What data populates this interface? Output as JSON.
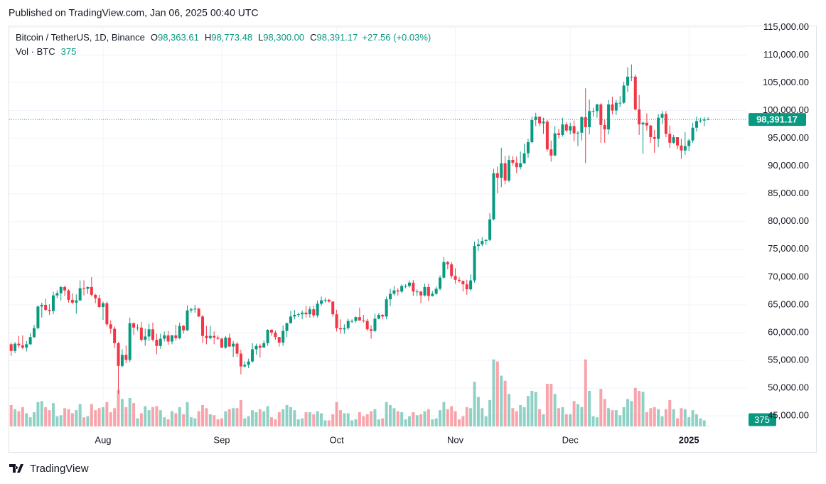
{
  "header": "Published on TradingView.com, Jan 06, 2025 00:40 UTC",
  "footer": "TradingView",
  "chart_data": {
    "type": "candlestick",
    "legend": {
      "symbol": "Bitcoin / TetherUS, 1D, Binance",
      "items": [
        {
          "key": "O",
          "text": "98,363.61"
        },
        {
          "key": "H",
          "text": "98,773.48"
        },
        {
          "key": "L",
          "text": "98,300.00"
        },
        {
          "key": "C",
          "text": "98,391.17"
        }
      ],
      "change": "+27.56 (+0.03%)",
      "volume_title": "Vol · BTC",
      "volume_text": "375"
    },
    "last_price_label": "98,391.17",
    "last_volume_label": "375",
    "up_color": "#089981",
    "down_color": "#f23645",
    "volume_up_color": "rgba(8,153,129,0.45)",
    "volume_down_color": "rgba(242,54,69,0.45)",
    "grid": true,
    "xlim": [
      -0.5,
      192
    ],
    "xticks": [
      {
        "value": 24,
        "label": "Aug"
      },
      {
        "value": 55,
        "label": "Sep"
      },
      {
        "value": 85,
        "label": "Oct"
      },
      {
        "value": 116,
        "label": "Nov"
      },
      {
        "value": 146,
        "label": "Dec"
      },
      {
        "value": 177,
        "label": "2025"
      }
    ],
    "ylim": [
      43100,
      115300
    ],
    "yticks": [
      {
        "value": 45000,
        "label": "45,000.00"
      },
      {
        "value": 50000,
        "label": "50,000.00"
      },
      {
        "value": 55000,
        "label": "55,000.00"
      },
      {
        "value": 60000,
        "label": "60,000.00"
      },
      {
        "value": 65000,
        "label": "65,000.00"
      },
      {
        "value": 70000,
        "label": "70,000.00"
      },
      {
        "value": 75000,
        "label": "75,000.00"
      },
      {
        "value": 80000,
        "label": "80,000.00"
      },
      {
        "value": 85000,
        "label": "85,000.00"
      },
      {
        "value": 90000,
        "label": "90,000.00"
      },
      {
        "value": 95000,
        "label": "95,000.00"
      },
      {
        "value": 100000,
        "label": "100,000.00"
      },
      {
        "value": 105000,
        "label": "105,000.00"
      },
      {
        "value": 110000,
        "label": "110,000.00"
      },
      {
        "value": 115000,
        "label": "115,000.00"
      }
    ],
    "vlim": [
      0,
      140000
    ],
    "ohlc": [
      [
        57900,
        58200,
        55800,
        56700
      ],
      [
        56700,
        58300,
        56300,
        58000
      ],
      [
        58000,
        59400,
        57200,
        57700
      ],
      [
        57700,
        59500,
        57000,
        57300
      ],
      [
        57300,
        58500,
        56600,
        57900
      ],
      [
        57900,
        59900,
        57800,
        59200
      ],
      [
        59200,
        61400,
        59000,
        60800
      ],
      [
        60800,
        64900,
        60600,
        64700
      ],
      [
        64700,
        65400,
        62700,
        65000
      ],
      [
        65000,
        66100,
        63900,
        64100
      ],
      [
        64100,
        65100,
        63200,
        63900
      ],
      [
        63900,
        67400,
        63300,
        66700
      ],
      [
        66700,
        67600,
        66200,
        67100
      ],
      [
        67100,
        68400,
        65800,
        68200
      ],
      [
        68200,
        68500,
        66600,
        67600
      ],
      [
        67600,
        67800,
        65400,
        65900
      ],
      [
        65900,
        67100,
        65100,
        65400
      ],
      [
        65400,
        66900,
        63400,
        65800
      ],
      [
        65800,
        69400,
        65700,
        68000
      ],
      [
        68000,
        69400,
        66700,
        67900
      ],
      [
        67900,
        68300,
        67000,
        68200
      ],
      [
        68200,
        70000,
        66500,
        66800
      ],
      [
        66800,
        67000,
        65300,
        66200
      ],
      [
        66200,
        66800,
        64500,
        64600
      ],
      [
        64600,
        65600,
        62300,
        65300
      ],
      [
        65300,
        65600,
        61100,
        61500
      ],
      [
        61500,
        62200,
        59800,
        60700
      ],
      [
        60700,
        61100,
        57200,
        58100
      ],
      [
        58100,
        58300,
        49000,
        54000
      ],
      [
        54000,
        57000,
        53700,
        56000
      ],
      [
        56000,
        57700,
        54500,
        55100
      ],
      [
        55100,
        62700,
        54700,
        61700
      ],
      [
        61700,
        61800,
        59600,
        60900
      ],
      [
        60900,
        61500,
        60300,
        60900
      ],
      [
        60900,
        61900,
        58400,
        58700
      ],
      [
        58700,
        60700,
        57600,
        59300
      ],
      [
        59300,
        61600,
        58500,
        60600
      ],
      [
        60600,
        61800,
        58400,
        58700
      ],
      [
        58700,
        59800,
        56100,
        57600
      ],
      [
        57600,
        59800,
        57100,
        58900
      ],
      [
        58900,
        60200,
        58400,
        59500
      ],
      [
        59500,
        60300,
        57800,
        58400
      ],
      [
        58400,
        59600,
        57900,
        59500
      ],
      [
        59500,
        61400,
        58600,
        59000
      ],
      [
        59000,
        61800,
        58800,
        61200
      ],
      [
        61200,
        61400,
        59800,
        60400
      ],
      [
        60400,
        64900,
        60300,
        64000
      ],
      [
        64000,
        64500,
        63600,
        64200
      ],
      [
        64200,
        65000,
        63600,
        64300
      ],
      [
        64300,
        64500,
        62800,
        62900
      ],
      [
        62900,
        63200,
        58100,
        59400
      ],
      [
        59400,
        61200,
        57900,
        59000
      ],
      [
        59000,
        61200,
        58800,
        59400
      ],
      [
        59400,
        60200,
        57900,
        59100
      ],
      [
        59100,
        59500,
        58700,
        58900
      ],
      [
        58900,
        59100,
        57200,
        57300
      ],
      [
        57300,
        59400,
        57100,
        59100
      ],
      [
        59100,
        59800,
        57400,
        57500
      ],
      [
        57500,
        58500,
        55600,
        58000
      ],
      [
        58000,
        58300,
        55600,
        56200
      ],
      [
        56200,
        56900,
        52500,
        53900
      ],
      [
        53900,
        54800,
        53700,
        54200
      ],
      [
        54200,
        55300,
        53600,
        54800
      ],
      [
        54800,
        58100,
        54600,
        57000
      ],
      [
        57000,
        58000,
        56000,
        57600
      ],
      [
        57600,
        58000,
        55500,
        57300
      ],
      [
        57300,
        58600,
        57300,
        58100
      ],
      [
        58100,
        60600,
        57600,
        60500
      ],
      [
        60500,
        60600,
        59400,
        60000
      ],
      [
        60000,
        60400,
        58700,
        59200
      ],
      [
        59200,
        59200,
        57500,
        58200
      ],
      [
        58200,
        61300,
        57600,
        60300
      ],
      [
        60300,
        61800,
        59200,
        61700
      ],
      [
        61700,
        63900,
        61600,
        62900
      ],
      [
        62900,
        64100,
        62400,
        63200
      ],
      [
        63200,
        63600,
        62800,
        63300
      ],
      [
        63300,
        64000,
        62400,
        63600
      ],
      [
        63600,
        64800,
        62700,
        63300
      ],
      [
        63300,
        64700,
        62700,
        64200
      ],
      [
        64200,
        64800,
        62700,
        63100
      ],
      [
        63100,
        65800,
        62700,
        65200
      ],
      [
        65200,
        66500,
        64800,
        65800
      ],
      [
        65800,
        66300,
        65400,
        65900
      ],
      [
        65900,
        66100,
        65400,
        65600
      ],
      [
        65600,
        65600,
        62900,
        63300
      ],
      [
        63300,
        64100,
        60200,
        60800
      ],
      [
        60800,
        62400,
        59800,
        60600
      ],
      [
        60600,
        61500,
        59800,
        60800
      ],
      [
        60800,
        62500,
        60500,
        62100
      ],
      [
        62100,
        62400,
        61700,
        62100
      ],
      [
        62100,
        62900,
        61800,
        62800
      ],
      [
        62800,
        64500,
        62100,
        62200
      ],
      [
        62200,
        63200,
        61800,
        62100
      ],
      [
        62100,
        62500,
        60300,
        60600
      ],
      [
        60600,
        61300,
        58900,
        60300
      ],
      [
        60300,
        63400,
        60100,
        62500
      ],
      [
        62500,
        63500,
        62400,
        63200
      ],
      [
        63200,
        63300,
        62400,
        62900
      ],
      [
        62900,
        66500,
        62400,
        66000
      ],
      [
        66000,
        67900,
        64800,
        67000
      ],
      [
        67000,
        68400,
        66700,
        67600
      ],
      [
        67600,
        68000,
        66700,
        67400
      ],
      [
        67400,
        68700,
        67100,
        68400
      ],
      [
        68400,
        68700,
        68000,
        68400
      ],
      [
        68400,
        69400,
        68100,
        69000
      ],
      [
        69000,
        69500,
        66600,
        67400
      ],
      [
        67400,
        67800,
        66600,
        67400
      ],
      [
        67400,
        67500,
        65300,
        66700
      ],
      [
        66700,
        68800,
        66500,
        68200
      ],
      [
        68200,
        68800,
        65700,
        66600
      ],
      [
        66600,
        67500,
        66500,
        67000
      ],
      [
        67000,
        68300,
        66800,
        67900
      ],
      [
        67900,
        70300,
        67600,
        69900
      ],
      [
        69900,
        73600,
        69700,
        72700
      ],
      [
        72700,
        72900,
        71400,
        72300
      ],
      [
        72300,
        72700,
        69700,
        70200
      ],
      [
        70200,
        71600,
        68800,
        69500
      ],
      [
        69500,
        70000,
        69000,
        69300
      ],
      [
        69300,
        69400,
        67400,
        68700
      ],
      [
        68700,
        69500,
        66800,
        67800
      ],
      [
        67800,
        70500,
        67500,
        69400
      ],
      [
        69400,
        76400,
        69000,
        75600
      ],
      [
        75600,
        76900,
        74700,
        75900
      ],
      [
        75900,
        77200,
        75600,
        76500
      ],
      [
        76500,
        76800,
        75800,
        76700
      ],
      [
        76700,
        81500,
        76500,
        80400
      ],
      [
        80400,
        89500,
        80200,
        88700
      ],
      [
        88700,
        89900,
        85100,
        87900
      ],
      [
        87900,
        93300,
        86200,
        90500
      ],
      [
        90500,
        91800,
        86700,
        87400
      ],
      [
        87400,
        91900,
        87100,
        91100
      ],
      [
        91100,
        91800,
        90100,
        90600
      ],
      [
        90600,
        91700,
        88700,
        89800
      ],
      [
        89800,
        92600,
        89400,
        90500
      ],
      [
        90500,
        94000,
        90400,
        92300
      ],
      [
        92300,
        94900,
        91500,
        94300
      ],
      [
        94300,
        98900,
        94100,
        98300
      ],
      [
        98300,
        99600,
        97200,
        98900
      ],
      [
        98900,
        98900,
        97200,
        97700
      ],
      [
        97700,
        98700,
        95800,
        98000
      ],
      [
        98000,
        98300,
        92600,
        93000
      ],
      [
        93000,
        94600,
        90800,
        91900
      ],
      [
        91900,
        97200,
        91800,
        95900
      ],
      [
        95900,
        96700,
        95000,
        95600
      ],
      [
        95600,
        98700,
        95300,
        97500
      ],
      [
        97500,
        97900,
        96100,
        96400
      ],
      [
        96400,
        97800,
        95700,
        97200
      ],
      [
        97200,
        98200,
        94400,
        95900
      ],
      [
        95900,
        96300,
        93600,
        96000
      ],
      [
        96000,
        99000,
        94600,
        98800
      ],
      [
        98800,
        104000,
        90500,
        97000
      ],
      [
        97000,
        102000,
        95700,
        99900
      ],
      [
        99900,
        100500,
        98900,
        99900
      ],
      [
        99900,
        101200,
        98700,
        101100
      ],
      [
        101100,
        101300,
        94200,
        97400
      ],
      [
        97400,
        98300,
        94200,
        96600
      ],
      [
        96600,
        101900,
        95700,
        101100
      ],
      [
        101100,
        102500,
        99300,
        100000
      ],
      [
        100000,
        101900,
        99200,
        101400
      ],
      [
        101400,
        102600,
        100600,
        101400
      ],
      [
        101400,
        105200,
        101200,
        104500
      ],
      [
        104500,
        107800,
        103300,
        106100
      ],
      [
        106100,
        108300,
        105300,
        106100
      ],
      [
        106100,
        106500,
        100000,
        100200
      ],
      [
        100200,
        102800,
        95600,
        97500
      ],
      [
        97500,
        98000,
        92200,
        97800
      ],
      [
        97800,
        99500,
        96400,
        97300
      ],
      [
        97300,
        97400,
        94200,
        95200
      ],
      [
        95200,
        96500,
        92400,
        94900
      ],
      [
        94900,
        99400,
        93400,
        98700
      ],
      [
        98700,
        99900,
        97600,
        99400
      ],
      [
        99400,
        99900,
        95200,
        95800
      ],
      [
        95800,
        97300,
        93300,
        94200
      ],
      [
        94200,
        95600,
        94000,
        95200
      ],
      [
        95200,
        95200,
        93000,
        93700
      ],
      [
        93700,
        94900,
        91300,
        92800
      ],
      [
        92800,
        96100,
        92000,
        93600
      ],
      [
        93600,
        94900,
        92700,
        94600
      ],
      [
        94600,
        97800,
        94200,
        96900
      ],
      [
        96900,
        98900,
        96200,
        98100
      ],
      [
        98100,
        98700,
        97800,
        98200
      ],
      [
        98200,
        98800,
        97200,
        98363.61
      ],
      [
        98363.61,
        98773.48,
        98300,
        98391.17
      ]
    ],
    "volume": [
      21000,
      17000,
      15000,
      19000,
      13000,
      9000,
      14000,
      24000,
      25000,
      19000,
      16000,
      23000,
      10000,
      11000,
      18000,
      17000,
      13000,
      16000,
      22000,
      9000,
      10000,
      22000,
      16000,
      18000,
      19000,
      24000,
      14000,
      18000,
      36000,
      27000,
      19000,
      28000,
      23000,
      8000,
      13000,
      20000,
      16000,
      19000,
      20000,
      16000,
      9000,
      7000,
      15000,
      13000,
      19000,
      12000,
      24000,
      9000,
      8000,
      15000,
      21000,
      18000,
      12000,
      11000,
      7000,
      8000,
      15000,
      17000,
      18000,
      18000,
      26000,
      8000,
      10000,
      16000,
      14000,
      17000,
      15000,
      20000,
      9000,
      7000,
      14000,
      17000,
      21000,
      19000,
      16000,
      7000,
      8000,
      14000,
      14000,
      12000,
      15000,
      13000,
      6000,
      6000,
      12000,
      24000,
      16000,
      13000,
      13000,
      6000,
      7000,
      14000,
      10000,
      12000,
      15000,
      17000,
      7000,
      8000,
      24000,
      21000,
      18000,
      15000,
      14000,
      7000,
      10000,
      14000,
      11000,
      12000,
      15000,
      17000,
      7000,
      8000,
      16000,
      24000,
      17000,
      20000,
      15000,
      7000,
      10000,
      19000,
      18000,
      44000,
      29000,
      18000,
      10000,
      26000,
      66000,
      64000,
      50000,
      45000,
      32000,
      18000,
      15000,
      21000,
      19000,
      30000,
      35000,
      34000,
      17000,
      12000,
      42000,
      42000,
      32000,
      18000,
      19000,
      12000,
      12000,
      25000,
      22000,
      19000,
      66000,
      35000,
      10000,
      9000,
      37000,
      27000,
      18000,
      16000,
      16000,
      11000,
      19000,
      27000,
      25000,
      38000,
      35000,
      34000,
      14000,
      18000,
      19000,
      17000,
      10000,
      17000,
      26000,
      17000,
      8000,
      18000,
      17000,
      9000,
      16000,
      12000,
      8000,
      6000,
      375
    ]
  }
}
